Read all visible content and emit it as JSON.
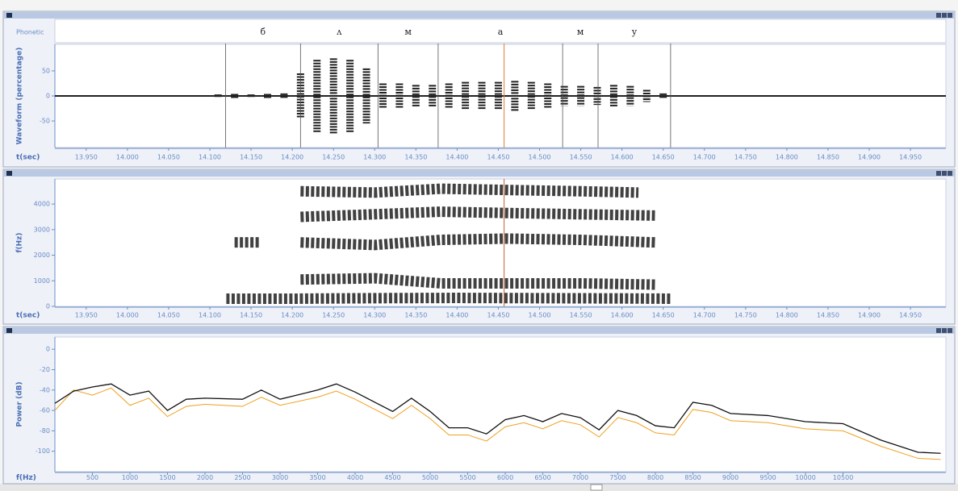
{
  "chart_data": [
    {
      "type": "waveform",
      "ylabel": "Waveform (percentage)",
      "xlabel": "t(sec)",
      "tier_label": "Phonetic",
      "phonemes": [
        "б",
        "ʌ",
        "м",
        "а",
        "м",
        "у"
      ],
      "boundaries": [
        14.119,
        14.21,
        14.304,
        14.377,
        14.528,
        14.571,
        14.659
      ],
      "cursor": 14.457,
      "cursor_color": "#e07b39",
      "color": "#222222",
      "x": [
        14.11,
        14.13,
        14.15,
        14.17,
        14.19,
        14.21,
        14.23,
        14.25,
        14.27,
        14.29,
        14.31,
        14.33,
        14.35,
        14.37,
        14.39,
        14.41,
        14.43,
        14.45,
        14.47,
        14.49,
        14.51,
        14.53,
        14.55,
        14.57,
        14.59,
        14.61,
        14.63,
        14.65,
        14.67
      ],
      "values": [
        3,
        4,
        3,
        4,
        5,
        45,
        72,
        75,
        72,
        55,
        25,
        25,
        22,
        22,
        25,
        28,
        28,
        28,
        30,
        28,
        25,
        20,
        20,
        18,
        22,
        20,
        12,
        5,
        1
      ],
      "xlim": [
        13.912,
        14.993
      ],
      "ylim": [
        -103,
        103
      ],
      "yticks": [
        50,
        0,
        -50
      ],
      "xticks": [
        {
          "value": 13.95,
          "label": "13.950"
        },
        {
          "value": 14.0,
          "label": "14.000"
        },
        {
          "value": 14.05,
          "label": "14.050"
        },
        {
          "value": 14.1,
          "label": "14.100"
        },
        {
          "value": 14.15,
          "label": "14.150"
        },
        {
          "value": 14.2,
          "label": "14.200"
        },
        {
          "value": 14.25,
          "label": "14.250"
        },
        {
          "value": 14.3,
          "label": "14.300"
        },
        {
          "value": 14.35,
          "label": "14.350"
        },
        {
          "value": 14.4,
          "label": "14.400"
        },
        {
          "value": 14.45,
          "label": "14.450"
        },
        {
          "value": 14.5,
          "label": "14.500"
        },
        {
          "value": 14.55,
          "label": "14.550"
        },
        {
          "value": 14.6,
          "label": "14.600"
        },
        {
          "value": 14.65,
          "label": "14.650"
        },
        {
          "value": 14.7,
          "label": "14.700"
        },
        {
          "value": 14.75,
          "label": "14.750"
        },
        {
          "value": 14.8,
          "label": "14.800"
        },
        {
          "value": 14.85,
          "label": "14.850"
        },
        {
          "value": 14.9,
          "label": "14.900"
        },
        {
          "value": 14.95,
          "label": "14.950"
        }
      ]
    },
    {
      "type": "spectrogram",
      "ylabel": "f(Hz)",
      "xlabel": "t(sec)",
      "cursor": 14.457,
      "cursor_color": "#c0603a",
      "color": "#111111",
      "bands": [
        {
          "x": [
            14.12,
            14.2,
            14.3,
            14.4,
            14.5,
            14.6,
            14.66
          ],
          "values": [
            300,
            300,
            320,
            330,
            320,
            310,
            300
          ]
        },
        {
          "x": [
            14.21,
            14.3,
            14.38,
            14.46,
            14.55,
            14.64
          ],
          "values": [
            1050,
            1100,
            900,
            900,
            900,
            850
          ]
        },
        {
          "x": [
            14.13,
            14.16
          ],
          "values": [
            2500,
            2500
          ]
        },
        {
          "x": [
            14.21,
            14.3,
            14.38,
            14.46,
            14.55,
            14.64
          ],
          "values": [
            2500,
            2400,
            2600,
            2650,
            2600,
            2500
          ]
        },
        {
          "x": [
            14.21,
            14.3,
            14.38,
            14.46,
            14.55,
            14.64
          ],
          "values": [
            3500,
            3600,
            3700,
            3650,
            3600,
            3550
          ]
        },
        {
          "x": [
            14.21,
            14.3,
            14.38,
            14.46,
            14.55,
            14.62
          ],
          "values": [
            4500,
            4450,
            4600,
            4550,
            4500,
            4450
          ]
        }
      ],
      "xlim": [
        13.912,
        14.993
      ],
      "ylim": [
        0,
        4980
      ],
      "yticks": [
        0,
        1000,
        2000,
        3000,
        4000
      ],
      "xticks": [
        {
          "value": 13.95,
          "label": "13.950"
        },
        {
          "value": 14.0,
          "label": "14.000"
        },
        {
          "value": 14.05,
          "label": "14.050"
        },
        {
          "value": 14.1,
          "label": "14.100"
        },
        {
          "value": 14.15,
          "label": "14.150"
        },
        {
          "value": 14.2,
          "label": "14.200"
        },
        {
          "value": 14.25,
          "label": "14.250"
        },
        {
          "value": 14.3,
          "label": "14.300"
        },
        {
          "value": 14.35,
          "label": "14.350"
        },
        {
          "value": 14.4,
          "label": "14.400"
        },
        {
          "value": 14.45,
          "label": "14.450"
        },
        {
          "value": 14.5,
          "label": "14.500"
        },
        {
          "value": 14.55,
          "label": "14.550"
        },
        {
          "value": 14.6,
          "label": "14.600"
        },
        {
          "value": 14.65,
          "label": "14.650"
        },
        {
          "value": 14.7,
          "label": "14.700"
        },
        {
          "value": 14.75,
          "label": "14.750"
        },
        {
          "value": 14.8,
          "label": "14.800"
        },
        {
          "value": 14.85,
          "label": "14.850"
        },
        {
          "value": 14.9,
          "label": "14.900"
        },
        {
          "value": 14.95,
          "label": "14.950"
        }
      ]
    },
    {
      "type": "line",
      "ylabel": "Power (dB)",
      "xlabel": "f(Hz)",
      "x": [
        0,
        250,
        500,
        750,
        1000,
        1250,
        1500,
        1750,
        2000,
        2500,
        2750,
        3000,
        3500,
        3750,
        4000,
        4500,
        4750,
        5000,
        5250,
        5500,
        5750,
        6000,
        6250,
        6500,
        6750,
        7000,
        7250,
        7500,
        7750,
        8000,
        8250,
        8500,
        8750,
        9000,
        9500,
        10000,
        10500,
        11000,
        11500,
        11800
      ],
      "series": [
        {
          "color": "#f0a020",
          "values": [
            -60,
            -40,
            -45,
            -38,
            -55,
            -48,
            -66,
            -56,
            -54,
            -56,
            -47,
            -55,
            -47,
            -41,
            -49,
            -68,
            -55,
            -68,
            -84,
            -84,
            -90,
            -76,
            -72,
            -78,
            -70,
            -74,
            -86,
            -67,
            -72,
            -82,
            -84,
            -59,
            -62,
            -70,
            -72,
            -78,
            -80,
            -95,
            -107,
            -108
          ]
        },
        {
          "color": "#111111",
          "values": [
            -53,
            -41,
            -37,
            -34,
            -45,
            -41,
            -60,
            -49,
            -48,
            -49,
            -40,
            -49,
            -40,
            -34,
            -42,
            -61,
            -48,
            -61,
            -77,
            -77,
            -83,
            -69,
            -65,
            -71,
            -63,
            -67,
            -79,
            -60,
            -65,
            -75,
            -77,
            -52,
            -55,
            -63,
            -65,
            -71,
            -73,
            -89,
            -101,
            -102
          ]
        }
      ],
      "xlim": [
        0,
        11870
      ],
      "ylim": [
        -120,
        12
      ],
      "yticks": [
        0,
        -20,
        -40,
        -60,
        -80,
        -100
      ],
      "xticks": [
        500,
        1000,
        1500,
        2000,
        2500,
        3000,
        3500,
        4000,
        4500,
        5000,
        5500,
        6000,
        6500,
        7000,
        7500,
        8000,
        8500,
        9000,
        9500,
        10000,
        10500
      ]
    }
  ]
}
